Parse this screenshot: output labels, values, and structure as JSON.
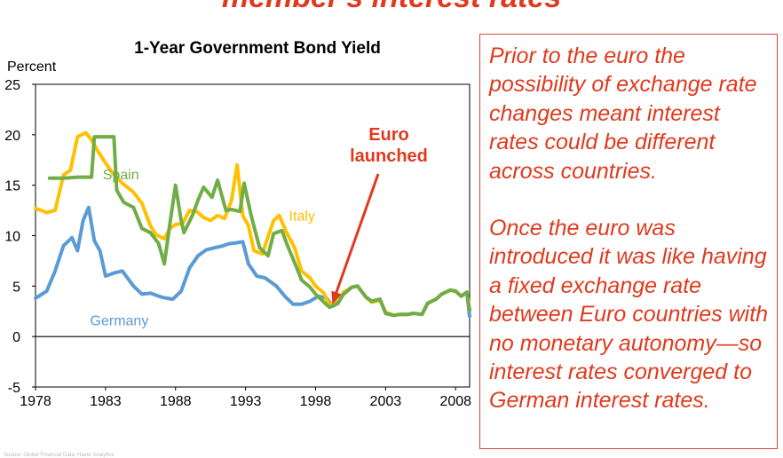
{
  "slide_title": "member's interest rates",
  "textbox": {
    "para1": "Prior to the euro the possibility of exchange rate changes meant interest rates could be different across countries.",
    "para2": "Once the euro was introduced it was like having a fixed exchange rate between Euro countries with no monetary autonomy—so interest rates converged to German interest rates."
  },
  "colors": {
    "germany": "#5b9bd5",
    "spain": "#70ad47",
    "italy": "#ffc000",
    "accent": "#e03a1e"
  },
  "chart_data": {
    "type": "line",
    "title": "1-Year Government Bond Yield",
    "ylabel": "Percent",
    "xlabel": "",
    "xlim": [
      1978,
      2009
    ],
    "ylim": [
      -5,
      25
    ],
    "xticks": [
      "1978",
      "1983",
      "1988",
      "1993",
      "1998",
      "2003",
      "2008"
    ],
    "yticks": [
      "-5",
      "0",
      "5",
      "10",
      "15",
      "20",
      "25"
    ],
    "grid": false,
    "annotation": {
      "line1": "Euro",
      "line2": "launched",
      "x": 1999.2,
      "y": 3.2
    },
    "series": [
      {
        "name": "Spain",
        "x": [
          1979,
          1980,
          1981,
          1982,
          1982.2,
          1983,
          1983.6,
          1983.8,
          1984.3,
          1985,
          1985.6,
          1986.2,
          1986.8,
          1987.2,
          1987.6,
          1988,
          1988.4,
          1988.6,
          1989.2,
          1989.6,
          1990,
          1990.6,
          1991,
          1991.6,
          1992,
          1992.6,
          1992.9,
          1993.4,
          1994,
          1994.6,
          1995,
          1995.6,
          1996,
          1996.6,
          1997,
          1997.6,
          1998,
          1998.6,
          1999,
          1999.6,
          2000,
          2000.6,
          2001,
          2001.6,
          2002,
          2002.6,
          2003,
          2003.6,
          2004,
          2004.6,
          2005,
          2005.6,
          2006,
          2006.6,
          2007,
          2007.6,
          2008,
          2008.4,
          2008.8,
          2009
        ],
        "values": [
          15.7,
          15.7,
          15.8,
          15.8,
          19.8,
          19.8,
          19.8,
          14.5,
          13.3,
          12.8,
          10.7,
          10.3,
          9.2,
          7.2,
          11.2,
          15.0,
          11.5,
          10.3,
          12.0,
          13.5,
          14.8,
          13.8,
          15.5,
          12.5,
          12.6,
          12.4,
          15.2,
          12.0,
          8.8,
          8.0,
          10.2,
          10.5,
          9.0,
          7.0,
          5.6,
          4.9,
          4.2,
          3.4,
          2.9,
          3.3,
          4.2,
          4.9,
          5.0,
          3.9,
          3.5,
          3.7,
          2.3,
          2.1,
          2.2,
          2.2,
          2.3,
          2.2,
          3.3,
          3.7,
          4.2,
          4.6,
          4.5,
          4.0,
          4.4,
          2.6
        ]
      },
      {
        "name": "Italy",
        "x": [
          1978,
          1978.8,
          1979.4,
          1980,
          1980.5,
          1981,
          1981.6,
          1982,
          1982.4,
          1983,
          1983.5,
          1984.2,
          1985,
          1985.6,
          1986.2,
          1986.6,
          1987.2,
          1987.6,
          1988,
          1988.5,
          1989,
          1989.5,
          1990,
          1990.5,
          1991,
          1991.5,
          1992,
          1992.4,
          1992.8,
          1993.2,
          1993.6,
          1994.2,
          1995,
          1995.4,
          1995.9,
          1996.5,
          1997,
          1997.6,
          1998,
          1998.6,
          1999,
          1999.6,
          2000,
          2000.6,
          2001,
          2001.6,
          2002,
          2002.6,
          2003,
          2003.6,
          2004,
          2004.6,
          2005,
          2005.6,
          2006,
          2006.6,
          2007,
          2007.6,
          2008,
          2008.4,
          2008.8,
          2009
        ],
        "values": [
          12.7,
          12.3,
          12.5,
          16.0,
          16.5,
          19.8,
          20.2,
          19.5,
          18.5,
          17.2,
          16.2,
          15.2,
          14.3,
          13.2,
          11.0,
          10.1,
          9.7,
          10.7,
          11.1,
          11.2,
          12.5,
          12.4,
          11.8,
          11.5,
          12.0,
          11.7,
          13.5,
          17.0,
          12.0,
          11.0,
          8.5,
          8.2,
          11.5,
          12.0,
          10.4,
          8.8,
          6.5,
          5.8,
          5.0,
          4.3,
          3.1,
          3.5,
          4.4,
          4.9,
          5.0,
          3.9,
          3.4,
          3.6,
          2.4,
          2.1,
          2.2,
          2.2,
          2.3,
          2.2,
          3.3,
          3.7,
          4.2,
          4.6,
          4.5,
          4.0,
          4.4,
          2.6
        ]
      },
      {
        "name": "Germany",
        "x": [
          1978,
          1978.8,
          1979.4,
          1980,
          1980.6,
          1981,
          1981.4,
          1981.8,
          1982.2,
          1982.6,
          1983,
          1983.6,
          1984.2,
          1985,
          1985.6,
          1986.2,
          1987,
          1987.8,
          1988.4,
          1989,
          1989.6,
          1990.2,
          1990.8,
          1991.4,
          1991.8,
          1992.4,
          1992.8,
          1993.2,
          1993.8,
          1994.4,
          1995.2,
          1995.8,
          1996.4,
          1997,
          1997.6,
          1998.2,
          1998.8,
          1999.2,
          1999.6,
          2000,
          2000.6,
          2001,
          2001.6,
          2002,
          2002.6,
          2003,
          2003.6,
          2004,
          2004.6,
          2005,
          2005.6,
          2006,
          2006.6,
          2007,
          2007.6,
          2008,
          2008.4,
          2008.8,
          2009
        ],
        "values": [
          3.8,
          4.5,
          6.5,
          9.0,
          9.8,
          8.5,
          11.5,
          12.8,
          9.5,
          8.5,
          6.0,
          6.3,
          6.5,
          5.0,
          4.2,
          4.3,
          3.9,
          3.7,
          4.5,
          6.8,
          8.0,
          8.6,
          8.8,
          9.0,
          9.2,
          9.3,
          9.4,
          7.2,
          6.0,
          5.8,
          5.0,
          4.0,
          3.2,
          3.2,
          3.5,
          4.0,
          3.8,
          3.0,
          3.3,
          4.3,
          4.9,
          5.0,
          3.9,
          3.5,
          3.7,
          2.3,
          2.1,
          2.2,
          2.2,
          2.3,
          2.2,
          3.3,
          3.7,
          4.2,
          4.6,
          4.5,
          4.0,
          4.4,
          2.0
        ]
      }
    ]
  }
}
